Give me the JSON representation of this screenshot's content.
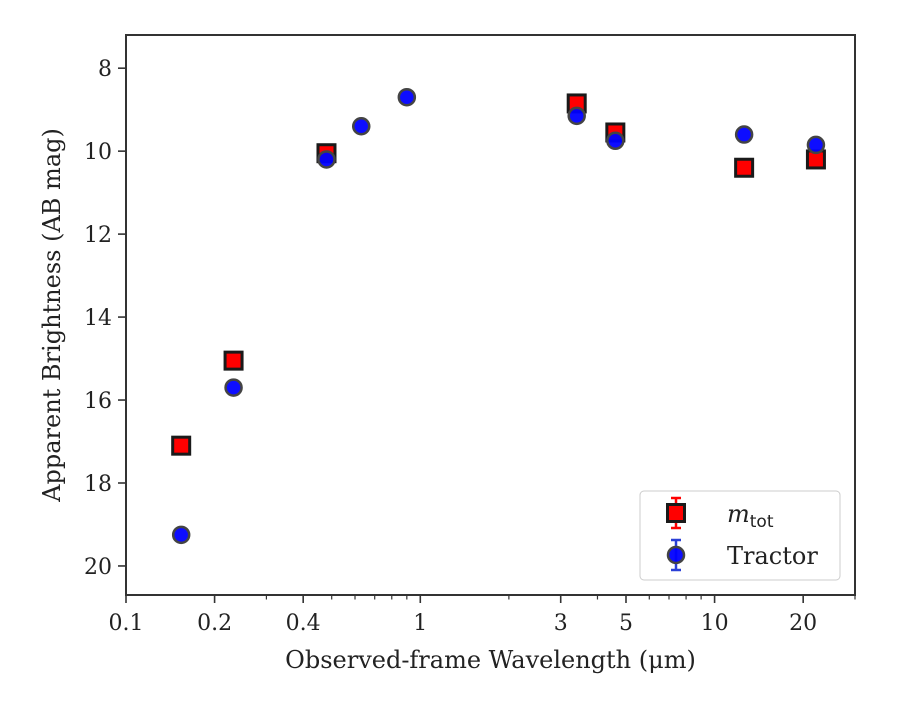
{
  "chart_data": {
    "type": "scatter",
    "title": "",
    "xlabel": "Observed-frame Wavelength (μm)",
    "ylabel": "Apparent Brightness (AB mag)",
    "x_scale": "log",
    "xlim": [
      0.1,
      30
    ],
    "ylim": [
      20.7,
      7.2
    ],
    "y_inverted": true,
    "grid": false,
    "legend_position": "lower-right",
    "x_ticks": [
      {
        "value": 0.1,
        "label": "0.1"
      },
      {
        "value": 0.2,
        "label": "0.2"
      },
      {
        "value": 0.4,
        "label": "0.4"
      },
      {
        "value": 1,
        "label": "1"
      },
      {
        "value": 3,
        "label": "3"
      },
      {
        "value": 5,
        "label": "5"
      },
      {
        "value": 10,
        "label": "10"
      },
      {
        "value": 20,
        "label": "20"
      }
    ],
    "y_ticks": [
      {
        "value": 8,
        "label": "8"
      },
      {
        "value": 10,
        "label": "10"
      },
      {
        "value": 12,
        "label": "12"
      },
      {
        "value": 14,
        "label": "14"
      },
      {
        "value": 16,
        "label": "16"
      },
      {
        "value": 18,
        "label": "18"
      },
      {
        "value": 20,
        "label": "20"
      }
    ],
    "series": [
      {
        "name": "m_tot",
        "legend_main": "m",
        "legend_sub": "tot",
        "marker": "square",
        "color": "#ff0000",
        "edge_color": "#1a1a1a",
        "x": [
          0.154,
          0.232,
          0.48,
          3.4,
          4.6,
          12.6,
          22.1
        ],
        "y": [
          17.1,
          15.05,
          10.05,
          8.85,
          9.55,
          10.4,
          10.2
        ]
      },
      {
        "name": "Tractor",
        "marker": "circle",
        "color": "#0000ff",
        "edge_color": "#444444",
        "x": [
          0.154,
          0.232,
          0.48,
          0.63,
          0.9,
          3.4,
          4.6,
          12.6,
          22.1
        ],
        "y": [
          19.25,
          15.7,
          10.2,
          9.4,
          8.7,
          9.15,
          9.75,
          9.6,
          9.85
        ]
      }
    ]
  }
}
